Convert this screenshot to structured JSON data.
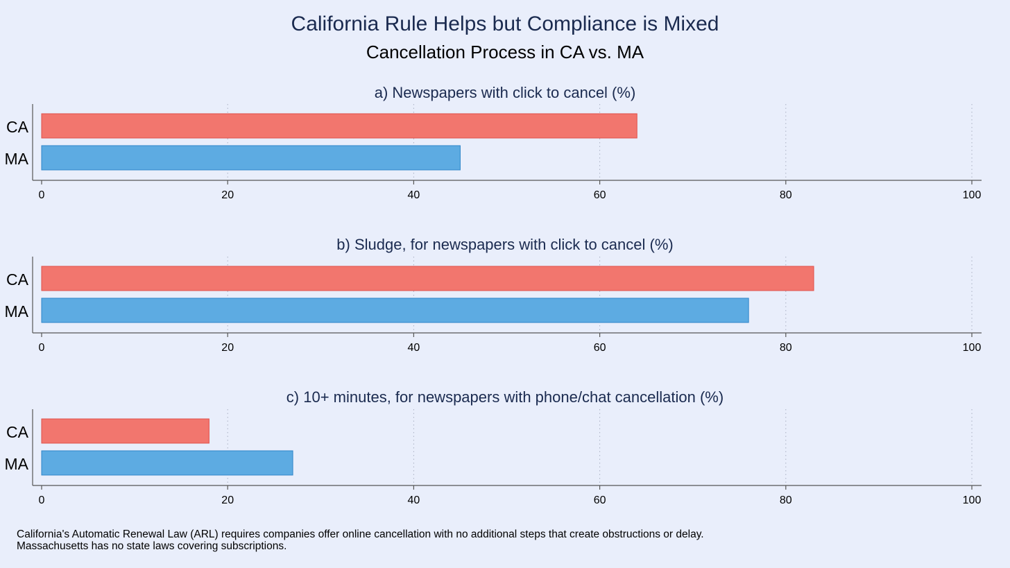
{
  "title": "California Rule Helps but Compliance is Mixed",
  "subtitle": "Cancellation Process in CA vs. MA",
  "notes": [
    "California's Automatic Renewal Law (ARL) requires companies offer online cancellation with no additional steps that create obstructions or delay.",
    "Massachusetts has no state laws covering subscriptions."
  ],
  "colors": {
    "CA": "#f2766e",
    "MA": "#5dabe2",
    "background": "#e9eefb",
    "panel_title": "#1a2a4f"
  },
  "chart_data": [
    {
      "type": "bar",
      "orientation": "horizontal",
      "title": "a) Newspapers with click to cancel (%)",
      "categories": [
        "CA",
        "MA"
      ],
      "values": [
        64,
        45
      ],
      "xlim": [
        0,
        100
      ],
      "xticks": [
        0,
        20,
        40,
        60,
        80,
        100
      ],
      "grid": true
    },
    {
      "type": "bar",
      "orientation": "horizontal",
      "title": "b) Sludge, for newspapers with click to cancel (%)",
      "categories": [
        "CA",
        "MA"
      ],
      "values": [
        83,
        76
      ],
      "xlim": [
        0,
        100
      ],
      "xticks": [
        0,
        20,
        40,
        60,
        80,
        100
      ],
      "grid": true
    },
    {
      "type": "bar",
      "orientation": "horizontal",
      "title": "c) 10+ minutes, for newspapers with phone/chat cancellation (%)",
      "categories": [
        "CA",
        "MA"
      ],
      "values": [
        18,
        27
      ],
      "xlim": [
        0,
        100
      ],
      "xticks": [
        0,
        20,
        40,
        60,
        80,
        100
      ],
      "grid": true
    }
  ]
}
